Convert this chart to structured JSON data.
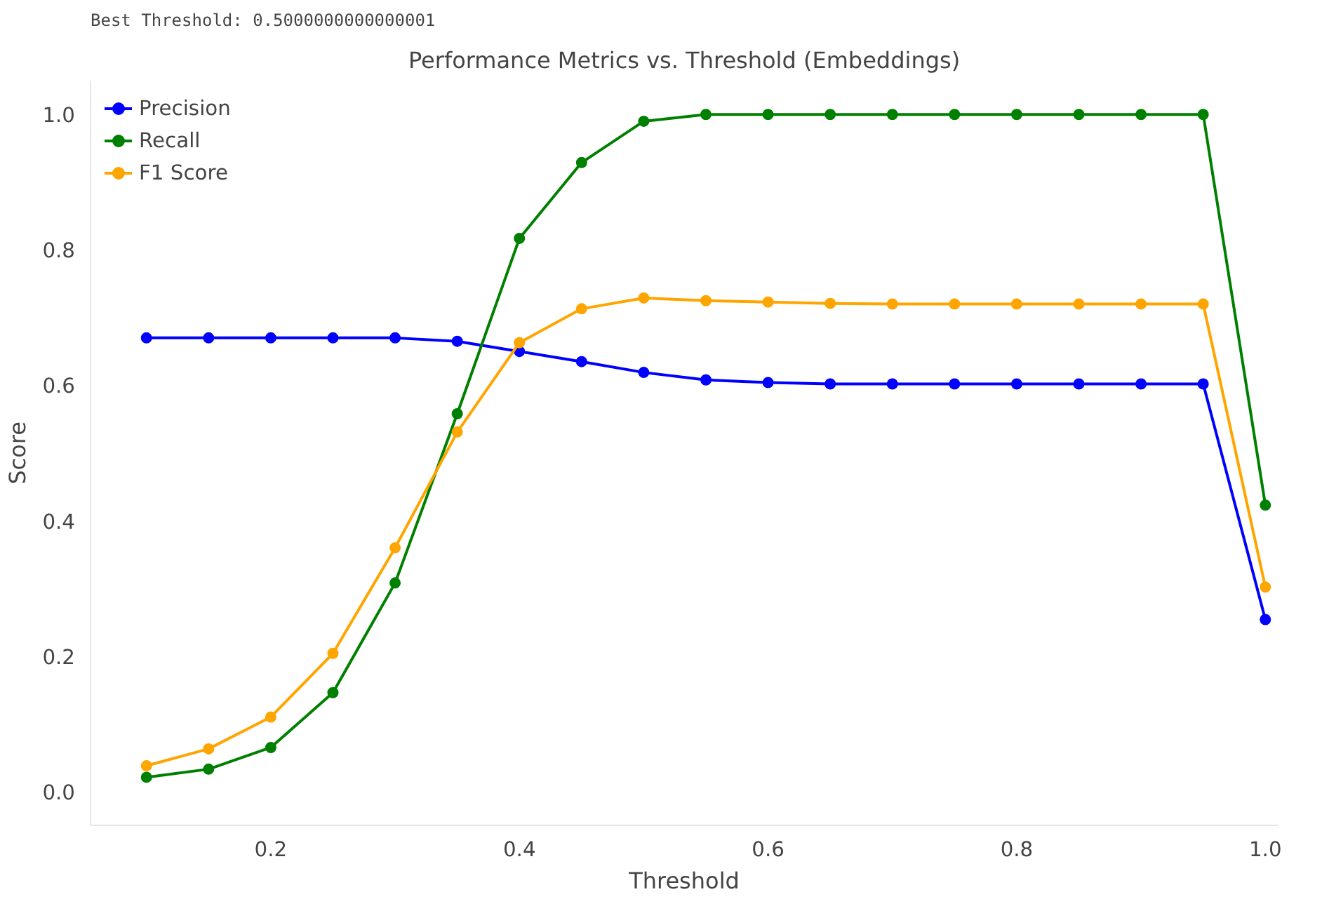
{
  "chart_data": {
    "type": "line",
    "title": "Performance Metrics vs. Threshold (Embeddings)",
    "xlabel": "Threshold",
    "ylabel": "Score",
    "annotations": [
      "Best Threshold: 0.5000000000000001"
    ],
    "x": [
      0.1,
      0.15,
      0.2,
      0.25,
      0.3,
      0.35,
      0.4,
      0.45,
      0.5,
      0.55,
      0.6,
      0.65,
      0.7,
      0.75,
      0.8,
      0.85,
      0.9,
      0.95,
      1.0
    ],
    "series": [
      {
        "name": "Precision",
        "color": "#0000ff",
        "values": [
          0.67,
          0.67,
          0.67,
          0.67,
          0.67,
          0.665,
          0.65,
          0.635,
          0.619,
          0.608,
          0.604,
          0.602,
          0.602,
          0.602,
          0.602,
          0.602,
          0.602,
          0.602,
          0.254
        ]
      },
      {
        "name": "Recall",
        "color": "#008000",
        "values": [
          0.021,
          0.033,
          0.065,
          0.146,
          0.308,
          0.558,
          0.817,
          0.929,
          0.99,
          1.0,
          1.0,
          1.0,
          1.0,
          1.0,
          1.0,
          1.0,
          1.0,
          1.0,
          0.423
        ]
      },
      {
        "name": "F1 Score",
        "color": "#ffa500",
        "values": [
          0.038,
          0.063,
          0.11,
          0.204,
          0.36,
          0.531,
          0.663,
          0.713,
          0.729,
          0.725,
          0.723,
          0.721,
          0.72,
          0.72,
          0.72,
          0.72,
          0.72,
          0.72,
          0.302
        ]
      }
    ],
    "xlim": [
      0.055,
      1.01
    ],
    "ylim": [
      -0.05,
      1.05
    ],
    "xticks": [
      {
        "value": 0.2,
        "label": "0.2"
      },
      {
        "value": 0.4,
        "label": "0.4"
      },
      {
        "value": 0.6,
        "label": "0.6"
      },
      {
        "value": 0.8,
        "label": "0.8"
      },
      {
        "value": 1.0,
        "label": "1.0"
      }
    ],
    "yticks": [
      {
        "value": 0.0,
        "label": "0.0"
      },
      {
        "value": 0.2,
        "label": "0.2"
      },
      {
        "value": 0.4,
        "label": "0.4"
      },
      {
        "value": 0.6,
        "label": "0.6"
      },
      {
        "value": 0.8,
        "label": "0.8"
      },
      {
        "value": 1.0,
        "label": "1.0"
      }
    ],
    "legend": "top left",
    "marker": "circle",
    "line_style": "solid",
    "grid": false
  }
}
